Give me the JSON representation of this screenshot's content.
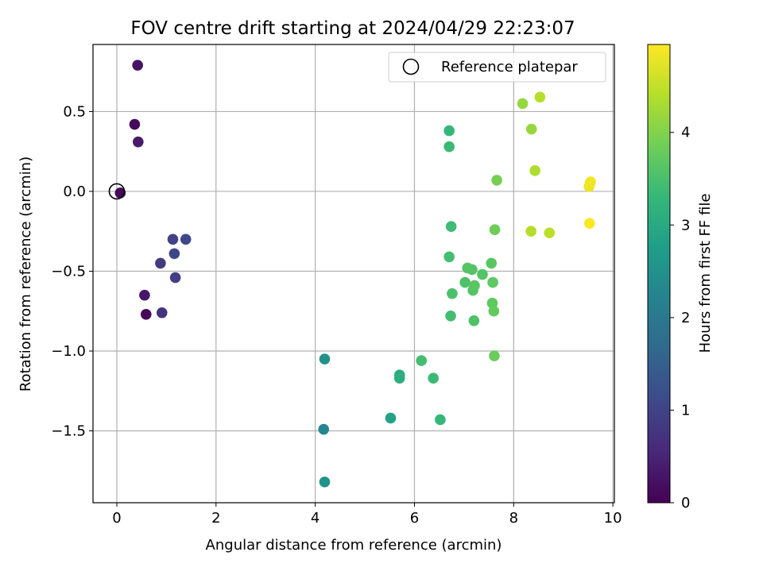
{
  "chart_data": {
    "type": "scatter",
    "title": "FOV centre drift starting at 2024/04/29 22:23:07",
    "xlabel": "Angular distance from reference (arcmin)",
    "ylabel": "Rotation from reference (arcmin)",
    "xlim": [
      -0.48,
      10.03
    ],
    "ylim": [
      -1.95,
      0.92
    ],
    "xticks": [
      0,
      2,
      4,
      6,
      8,
      10
    ],
    "xtick_labels": [
      "0",
      "2",
      "4",
      "6",
      "8",
      "10"
    ],
    "yticks": [
      0.5,
      0.0,
      -0.5,
      -1.0,
      -1.5
    ],
    "ytick_labels": [
      "0.5",
      "0.0",
      "−0.5",
      "−1.0",
      "−1.5"
    ],
    "grid": true,
    "legend": {
      "placement": "top-right",
      "entries": [
        "Reference platepar"
      ]
    },
    "reference_point": {
      "x": 0.0,
      "y": 0.0,
      "marker": "open-circle",
      "label": "Reference platepar"
    },
    "colorbar": {
      "label": "Hours from first FF file",
      "colormap": "viridis",
      "range": [
        0,
        4.95
      ],
      "ticks": [
        0,
        1,
        2,
        3,
        4
      ],
      "tick_labels": [
        "0",
        "1",
        "2",
        "3",
        "4"
      ]
    },
    "points": [
      {
        "x": 0.07,
        "y": -0.01,
        "h": 0.1
      },
      {
        "x": 0.42,
        "y": 0.79,
        "h": 0.25
      },
      {
        "x": 0.36,
        "y": 0.42,
        "h": 0.15
      },
      {
        "x": 0.43,
        "y": 0.31,
        "h": 0.35
      },
      {
        "x": 0.59,
        "y": -0.77,
        "h": 0.1
      },
      {
        "x": 0.56,
        "y": -0.65,
        "h": 0.3
      },
      {
        "x": 0.91,
        "y": -0.76,
        "h": 0.75
      },
      {
        "x": 0.88,
        "y": -0.45,
        "h": 0.85
      },
      {
        "x": 1.13,
        "y": -0.3,
        "h": 1.0
      },
      {
        "x": 1.16,
        "y": -0.39,
        "h": 1.05
      },
      {
        "x": 1.39,
        "y": -0.3,
        "h": 1.1
      },
      {
        "x": 1.18,
        "y": -0.54,
        "h": 0.95
      },
      {
        "x": 4.19,
        "y": -1.05,
        "h": 2.5
      },
      {
        "x": 4.17,
        "y": -1.49,
        "h": 2.3
      },
      {
        "x": 4.19,
        "y": -1.82,
        "h": 2.5
      },
      {
        "x": 5.52,
        "y": -1.42,
        "h": 2.85
      },
      {
        "x": 5.7,
        "y": -1.15,
        "h": 3.05
      },
      {
        "x": 5.7,
        "y": -1.17,
        "h": 3.1
      },
      {
        "x": 6.14,
        "y": -1.06,
        "h": 3.45
      },
      {
        "x": 6.38,
        "y": -1.17,
        "h": 3.35
      },
      {
        "x": 6.52,
        "y": -1.43,
        "h": 3.3
      },
      {
        "x": 6.7,
        "y": 0.38,
        "h": 3.3
      },
      {
        "x": 6.7,
        "y": 0.28,
        "h": 3.35
      },
      {
        "x": 6.74,
        "y": -0.22,
        "h": 3.4
      },
      {
        "x": 6.7,
        "y": -0.41,
        "h": 3.45
      },
      {
        "x": 6.76,
        "y": -0.64,
        "h": 3.5
      },
      {
        "x": 6.73,
        "y": -0.78,
        "h": 3.45
      },
      {
        "x": 7.02,
        "y": -0.57,
        "h": 3.55
      },
      {
        "x": 7.07,
        "y": -0.48,
        "h": 3.6
      },
      {
        "x": 7.16,
        "y": -0.49,
        "h": 3.6
      },
      {
        "x": 7.18,
        "y": -0.62,
        "h": 3.6
      },
      {
        "x": 7.21,
        "y": -0.59,
        "h": 3.65
      },
      {
        "x": 7.2,
        "y": -0.81,
        "h": 3.55
      },
      {
        "x": 7.37,
        "y": -0.52,
        "h": 3.6
      },
      {
        "x": 7.55,
        "y": -0.45,
        "h": 3.65
      },
      {
        "x": 7.58,
        "y": -0.57,
        "h": 3.7
      },
      {
        "x": 7.57,
        "y": -0.7,
        "h": 3.7
      },
      {
        "x": 7.6,
        "y": -0.75,
        "h": 3.75
      },
      {
        "x": 7.61,
        "y": -1.03,
        "h": 3.8
      },
      {
        "x": 7.62,
        "y": -0.24,
        "h": 3.85
      },
      {
        "x": 7.66,
        "y": 0.07,
        "h": 3.9
      },
      {
        "x": 8.18,
        "y": 0.55,
        "h": 4.15
      },
      {
        "x": 8.36,
        "y": 0.39,
        "h": 4.15
      },
      {
        "x": 8.53,
        "y": 0.59,
        "h": 4.4
      },
      {
        "x": 8.43,
        "y": 0.13,
        "h": 4.35
      },
      {
        "x": 8.35,
        "y": -0.25,
        "h": 4.4
      },
      {
        "x": 8.72,
        "y": -0.26,
        "h": 4.45
      },
      {
        "x": 9.55,
        "y": 0.06,
        "h": 4.9
      },
      {
        "x": 9.52,
        "y": 0.03,
        "h": 4.8
      },
      {
        "x": 9.54,
        "y": 0.05,
        "h": 4.85
      },
      {
        "x": 9.53,
        "y": -0.2,
        "h": 4.95
      }
    ]
  }
}
